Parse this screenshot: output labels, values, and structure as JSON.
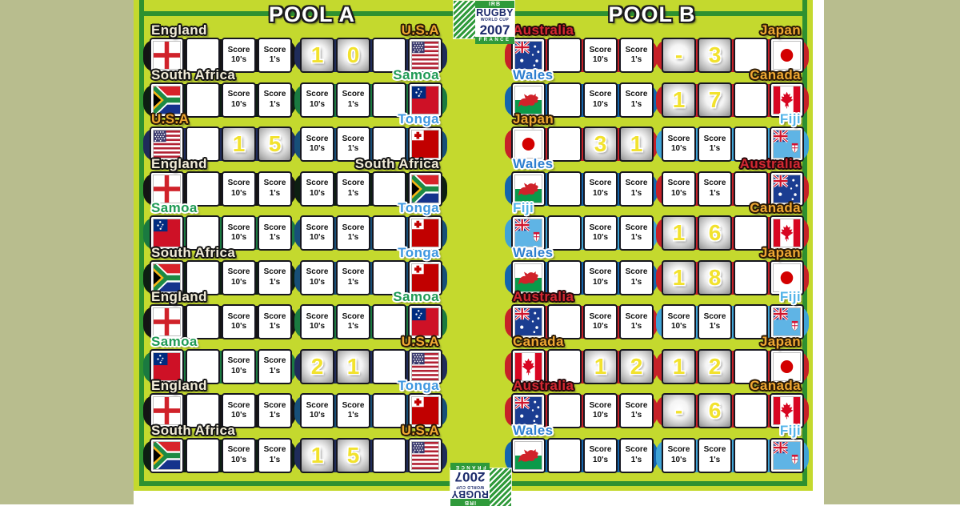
{
  "labels": {
    "score": "Score",
    "tens": "10's",
    "ones": "1's"
  },
  "logo": {
    "irb": "IRB",
    "rugby": "RUGBY",
    "worldcup": "WORLD CUP",
    "year": "2007",
    "country": "FRANCE"
  },
  "colors": {
    "board": "#c4d92e",
    "frame": "#2e9130",
    "surround": "#b8bd8e",
    "box_border": "#16161f",
    "digit": "#f2e22e"
  },
  "teams": {
    "england": {
      "name": "England",
      "fill": "#f2ecd8",
      "ol": "#141414",
      "cap": "#141414"
    },
    "south-africa": {
      "name": "South Africa",
      "fill": "#f2ecd8",
      "ol": "#141414",
      "cap": "#0d1f12"
    },
    "usa": {
      "name": "U.S.A",
      "fill": "#f0a832",
      "ol": "#2b1a06",
      "cap": "#1f2c5a"
    },
    "samoa": {
      "name": "Samoa",
      "fill": "#1f9a55",
      "ol": "#ffffff",
      "cap": "#1a7a40"
    },
    "tonga": {
      "name": "Tonga",
      "fill": "#3e97e0",
      "ol": "#ffffff",
      "cap": "#174f78"
    },
    "wales": {
      "name": "Wales",
      "fill": "#2e7fd0",
      "ol": "#ffffff",
      "cap": "#1465ad"
    },
    "australia": {
      "name": "Australia",
      "fill": "#d42832",
      "ol": "#26090b",
      "cap": "#c62128"
    },
    "japan": {
      "name": "Japan",
      "fill": "#f0a832",
      "ol": "#2b1a06",
      "cap": "#c62128"
    },
    "canada": {
      "name": "Canada",
      "fill": "#f0a832",
      "ol": "#2b1a06",
      "cap": "#c62128"
    },
    "fiji": {
      "name": "Fiji",
      "fill": "#54b4e8",
      "ol": "#ffffff",
      "cap": "#3fa3d6"
    }
  },
  "pools": [
    {
      "label": "POOL A",
      "matches": [
        {
          "home": "england",
          "away": "usa",
          "score": {
            "home_tens": null,
            "home_ones": null,
            "away_tens": "1",
            "away_ones": "0"
          }
        },
        {
          "home": "south-africa",
          "away": "samoa",
          "score": {
            "home_tens": null,
            "home_ones": null,
            "away_tens": null,
            "away_ones": null
          }
        },
        {
          "home": "usa",
          "away": "tonga",
          "score": {
            "home_tens": "1",
            "home_ones": "5",
            "away_tens": null,
            "away_ones": null
          }
        },
        {
          "home": "england",
          "away": "south-africa",
          "score": {
            "home_tens": null,
            "home_ones": null,
            "away_tens": null,
            "away_ones": null
          }
        },
        {
          "home": "samoa",
          "away": "tonga",
          "score": {
            "home_tens": null,
            "home_ones": null,
            "away_tens": null,
            "away_ones": null
          }
        },
        {
          "home": "south-africa",
          "away": "tonga",
          "score": {
            "home_tens": null,
            "home_ones": null,
            "away_tens": null,
            "away_ones": null
          }
        },
        {
          "home": "england",
          "away": "samoa",
          "score": {
            "home_tens": null,
            "home_ones": null,
            "away_tens": null,
            "away_ones": null
          }
        },
        {
          "home": "samoa",
          "away": "usa",
          "score": {
            "home_tens": null,
            "home_ones": null,
            "away_tens": "2",
            "away_ones": "1"
          }
        },
        {
          "home": "england",
          "away": "tonga",
          "score": {
            "home_tens": null,
            "home_ones": null,
            "away_tens": null,
            "away_ones": null
          }
        },
        {
          "home": "south-africa",
          "away": "usa",
          "score": {
            "home_tens": null,
            "home_ones": null,
            "away_tens": "1",
            "away_ones": "5"
          }
        }
      ]
    },
    {
      "label": "POOL B",
      "matches": [
        {
          "home": "australia",
          "away": "japan",
          "score": {
            "home_tens": null,
            "home_ones": null,
            "away_tens": "-",
            "away_ones": "3"
          }
        },
        {
          "home": "wales",
          "away": "canada",
          "score": {
            "home_tens": null,
            "home_ones": null,
            "away_tens": "1",
            "away_ones": "7"
          }
        },
        {
          "home": "japan",
          "away": "fiji",
          "score": {
            "home_tens": "3",
            "home_ones": "1",
            "away_tens": null,
            "away_ones": null
          }
        },
        {
          "home": "wales",
          "away": "australia",
          "score": {
            "home_tens": null,
            "home_ones": null,
            "away_tens": null,
            "away_ones": null
          }
        },
        {
          "home": "fiji",
          "away": "canada",
          "score": {
            "home_tens": null,
            "home_ones": null,
            "away_tens": "1",
            "away_ones": "6"
          }
        },
        {
          "home": "wales",
          "away": "japan",
          "score": {
            "home_tens": null,
            "home_ones": null,
            "away_tens": "1",
            "away_ones": "8"
          }
        },
        {
          "home": "australia",
          "away": "fiji",
          "score": {
            "home_tens": null,
            "home_ones": null,
            "away_tens": null,
            "away_ones": null
          }
        },
        {
          "home": "canada",
          "away": "japan",
          "score": {
            "home_tens": "1",
            "home_ones": "2",
            "away_tens": "1",
            "away_ones": "2"
          }
        },
        {
          "home": "australia",
          "away": "canada",
          "score": {
            "home_tens": null,
            "home_ones": null,
            "away_tens": "-",
            "away_ones": "6"
          }
        },
        {
          "home": "wales",
          "away": "fiji",
          "score": {
            "home_tens": null,
            "home_ones": null,
            "away_tens": null,
            "away_ones": null
          }
        }
      ]
    }
  ]
}
